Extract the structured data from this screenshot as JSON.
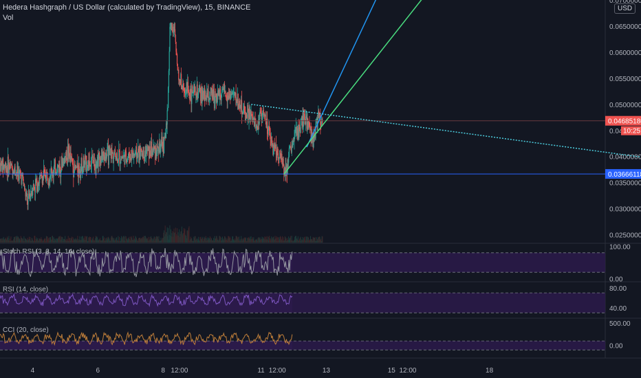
{
  "header": {
    "title": "Hedera Hashgraph / US Dollar (calculated by TradingView), 15, BINANCE",
    "volume_label": "Vol",
    "currency": "USD"
  },
  "panes": {
    "stoch_label": "Stoch RSI (3, 3, 14, 14, close)",
    "rsi_label": "RSI (14, close)",
    "cci_label": "CCI (20, close)"
  },
  "colors": {
    "background": "#131722",
    "up": "#26a69a",
    "down": "#ef5350",
    "blue_line": "#2196f3",
    "green_line": "#4ade80",
    "dotted_line": "#4dd0e1",
    "support_line": "#2962ff",
    "stoch_band": "#2b1a4a",
    "rsi_band": "#2b1a4a",
    "cci_line": "#c07f3a",
    "rsi_line": "#7e57c2",
    "stoch_line": "#9598a1"
  },
  "chart_data": {
    "type": "candlestick",
    "price_axis": {
      "labels": [
        "0.06500000",
        "0.06000000",
        "0.05500000",
        "0.05000000",
        "0.04500000",
        "0.04000000",
        "0.03500000",
        "0.03000000",
        "0.02500000"
      ],
      "values": [
        0.065,
        0.06,
        0.055,
        0.05,
        0.045,
        0.04,
        0.035,
        0.03,
        0.025
      ],
      "range": [
        0.0235,
        0.07
      ],
      "top_partial_label": "0.07000000"
    },
    "time_axis": {
      "labels": [
        "4",
        "6",
        "8",
        "12:00",
        "11",
        "12:00",
        "13",
        "15",
        "12:00",
        "18"
      ],
      "day_positions": [
        4,
        6,
        8,
        8.5,
        11,
        11.5,
        13,
        15,
        15.5,
        18
      ]
    },
    "last_price": {
      "label": "0.04685180",
      "value": 0.0468518,
      "countdown": "10:25"
    },
    "support": {
      "label": "0.03666118",
      "value": 0.03666118
    },
    "price_path": [
      [
        3.0,
        0.0385
      ],
      [
        3.4,
        0.0378
      ],
      [
        3.7,
        0.036
      ],
      [
        3.85,
        0.031
      ],
      [
        4.0,
        0.034
      ],
      [
        4.3,
        0.036
      ],
      [
        4.6,
        0.037
      ],
      [
        4.9,
        0.0385
      ],
      [
        5.1,
        0.041
      ],
      [
        5.3,
        0.0375
      ],
      [
        5.6,
        0.0385
      ],
      [
        6.0,
        0.0395
      ],
      [
        6.4,
        0.0405
      ],
      [
        6.8,
        0.0398
      ],
      [
        7.2,
        0.0405
      ],
      [
        7.6,
        0.041
      ],
      [
        7.9,
        0.0415
      ],
      [
        8.05,
        0.0425
      ],
      [
        8.15,
        0.0475
      ],
      [
        8.22,
        0.065
      ],
      [
        8.35,
        0.064
      ],
      [
        8.5,
        0.055
      ],
      [
        8.7,
        0.0525
      ],
      [
        9.0,
        0.052
      ],
      [
        9.4,
        0.0515
      ],
      [
        9.8,
        0.052
      ],
      [
        10.2,
        0.0518
      ],
      [
        10.5,
        0.0485
      ],
      [
        10.7,
        0.0475
      ],
      [
        10.9,
        0.0455
      ],
      [
        11.0,
        0.049
      ],
      [
        11.15,
        0.047
      ],
      [
        11.3,
        0.043
      ],
      [
        11.45,
        0.0415
      ],
      [
        11.6,
        0.04
      ],
      [
        11.75,
        0.0375
      ],
      [
        11.9,
        0.041
      ],
      [
        12.1,
        0.0445
      ],
      [
        12.3,
        0.047
      ],
      [
        12.5,
        0.046
      ],
      [
        12.6,
        0.043
      ],
      [
        12.75,
        0.047
      ],
      [
        12.9,
        0.0468
      ]
    ],
    "drawings": {
      "blue_trend": [
        [
          12.4,
          0.0418
        ],
        [
          16.0,
          0.0898
        ]
      ],
      "green_trend": [
        [
          11.7,
          0.0366
        ],
        [
          17.4,
          0.0818
        ]
      ],
      "dotted_trend": [
        [
          10.7,
          0.05
        ],
        [
          23.0,
          0.0396
        ]
      ]
    },
    "stoch_rsi": {
      "axis_labels": [
        "100.00",
        "0.00"
      ],
      "band": [
        20,
        80
      ]
    },
    "rsi": {
      "axis_labels": [
        "80.00",
        "40.00"
      ],
      "band": [
        30,
        70
      ]
    },
    "cci": {
      "axis_labels": [
        "500.00",
        "0.00"
      ],
      "band": [
        -100,
        100
      ]
    },
    "view": {
      "day_start": 3.0,
      "day_end": 21.55
    }
  }
}
